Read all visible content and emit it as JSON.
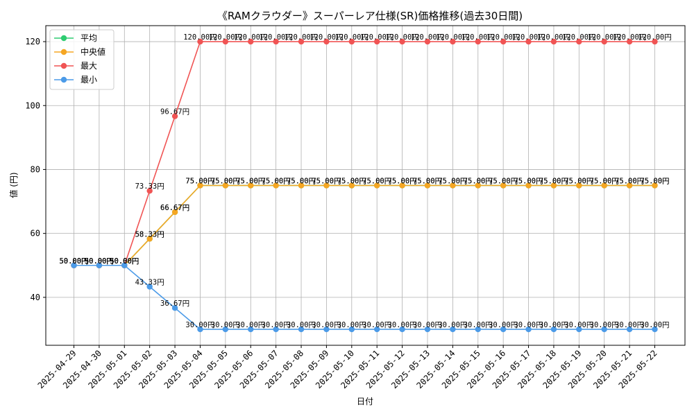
{
  "chart_data": {
    "type": "line",
    "title": "《RAMクラウダー》スーパーレア仕様(SR)価格推移(過去30日間)",
    "xlabel": "日付",
    "ylabel": "値 (円)",
    "ylim": [
      25,
      125
    ],
    "yticks": [
      40,
      60,
      80,
      100,
      120
    ],
    "grid": true,
    "legend_position": "top-left",
    "value_suffix": "円",
    "categories": [
      "2025-04-29",
      "2025-04-30",
      "2025-05-01",
      "2025-05-02",
      "2025-05-03",
      "2025-05-04",
      "2025-05-05",
      "2025-05-06",
      "2025-05-07",
      "2025-05-08",
      "2025-05-09",
      "2025-05-10",
      "2025-05-11",
      "2025-05-12",
      "2025-05-13",
      "2025-05-14",
      "2025-05-15",
      "2025-05-16",
      "2025-05-17",
      "2025-05-18",
      "2025-05-19",
      "2025-05-20",
      "2025-05-21",
      "2025-05-22"
    ],
    "series": [
      {
        "name": "平均",
        "color": "#2ecc71",
        "values": [
          50,
          50,
          50,
          58.33,
          66.67,
          75,
          75,
          75,
          75,
          75,
          75,
          75,
          75,
          75,
          75,
          75,
          75,
          75,
          75,
          75,
          75,
          75,
          75,
          75
        ]
      },
      {
        "name": "中央値",
        "color": "#f5a623",
        "values": [
          50,
          50,
          50,
          58.33,
          66.67,
          75,
          75,
          75,
          75,
          75,
          75,
          75,
          75,
          75,
          75,
          75,
          75,
          75,
          75,
          75,
          75,
          75,
          75,
          75
        ]
      },
      {
        "name": "最大",
        "color": "#f05454",
        "values": [
          50,
          50,
          50,
          73.33,
          96.67,
          120,
          120,
          120,
          120,
          120,
          120,
          120,
          120,
          120,
          120,
          120,
          120,
          120,
          120,
          120,
          120,
          120,
          120,
          120
        ]
      },
      {
        "name": "最小",
        "color": "#4c9be8",
        "values": [
          50,
          50,
          50,
          43.33,
          36.67,
          30,
          30,
          30,
          30,
          30,
          30,
          30,
          30,
          30,
          30,
          30,
          30,
          30,
          30,
          30,
          30,
          30,
          30,
          30
        ]
      }
    ]
  }
}
